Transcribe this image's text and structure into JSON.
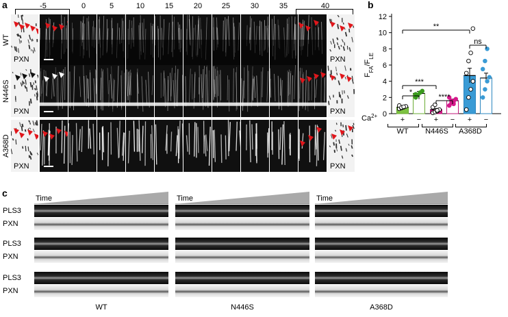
{
  "panel_a": {
    "letter": "a",
    "timepoints": [
      "-5",
      "0",
      "5",
      "10",
      "15",
      "20",
      "25",
      "30",
      "35",
      "40"
    ],
    "rows": [
      {
        "label": "WT",
        "marker": "PXN"
      },
      {
        "label": "N446S",
        "marker": "PXN"
      },
      {
        "label": "A368D",
        "marker": "PXN"
      }
    ]
  },
  "panel_b": {
    "letter": "b",
    "ylabel": "F_FA/F_LE",
    "ca_label": "Ca2+",
    "group_labels": [
      "WT",
      "N446S",
      "A368D"
    ],
    "sign_labels": [
      "+",
      "−",
      "+",
      "−",
      "+",
      "−"
    ],
    "significance": [
      "**",
      "***",
      "*",
      "****",
      "ns"
    ]
  },
  "chart_data": {
    "type": "bar",
    "title": "",
    "ylabel": "F_FA/F_LE",
    "xlabel": "Ca2+",
    "ylim": [
      0,
      12
    ],
    "yticks": [
      0,
      2,
      4,
      6,
      8,
      10,
      12
    ],
    "categories": [
      "WT +",
      "WT −",
      "N446S +",
      "N446S −",
      "A368D +",
      "A368D −"
    ],
    "values": [
      0.8,
      2.5,
      0.5,
      1.6,
      4.7,
      4.4
    ],
    "errors": [
      0.1,
      0.25,
      0.15,
      0.2,
      0.9,
      0.6
    ],
    "bar_fill": [
      "#7dc242",
      "#ffffff",
      "#d6198b",
      "#ffffff",
      "#3a9bd5",
      "#ffffff"
    ],
    "bar_edge": [
      "#6aab33",
      "#6aab33",
      "#c0157a",
      "#c0157a",
      "#2a85bf",
      "#2a85bf"
    ],
    "points": [
      [
        0.6,
        0.7,
        0.8,
        0.9,
        1.0,
        0.75,
        0.85
      ],
      [
        2.0,
        2.3,
        2.6,
        2.8,
        2.4
      ],
      [
        0.1,
        0.2,
        0.3,
        0.5,
        0.8,
        1.1,
        0.4
      ],
      [
        1.0,
        1.3,
        1.5,
        1.8,
        2.0,
        1.6,
        1.2
      ],
      [
        0.5,
        2.0,
        3.0,
        4.0,
        5.0,
        6.5,
        7.5,
        10.5
      ],
      [
        2.0,
        3.0,
        4.0,
        4.5,
        5.5,
        6.5,
        8.0
      ]
    ],
    "point_colors": [
      "#000000",
      "#3a9b1e",
      "#000000",
      "#d6198b",
      "#000000",
      "#3a9bd5"
    ],
    "point_style": [
      "open",
      "filled",
      "open",
      "filled",
      "open",
      "filled"
    ],
    "brackets": [
      {
        "from": 0,
        "to": 4,
        "label": "**"
      },
      {
        "from": 0,
        "to": 2,
        "label": "***"
      },
      {
        "from": 0,
        "to": 1,
        "label": "*"
      },
      {
        "from": 2,
        "to": 3,
        "label": "****"
      },
      {
        "from": 4,
        "to": 5,
        "label": "ns"
      }
    ]
  },
  "panel_c": {
    "letter": "c",
    "time_label": "Time",
    "row_labels": [
      "PLS3",
      "PXN",
      "PLS3",
      "PXN",
      "PLS3",
      "PXN"
    ],
    "column_labels": [
      "WT",
      "N446S",
      "A368D"
    ]
  }
}
